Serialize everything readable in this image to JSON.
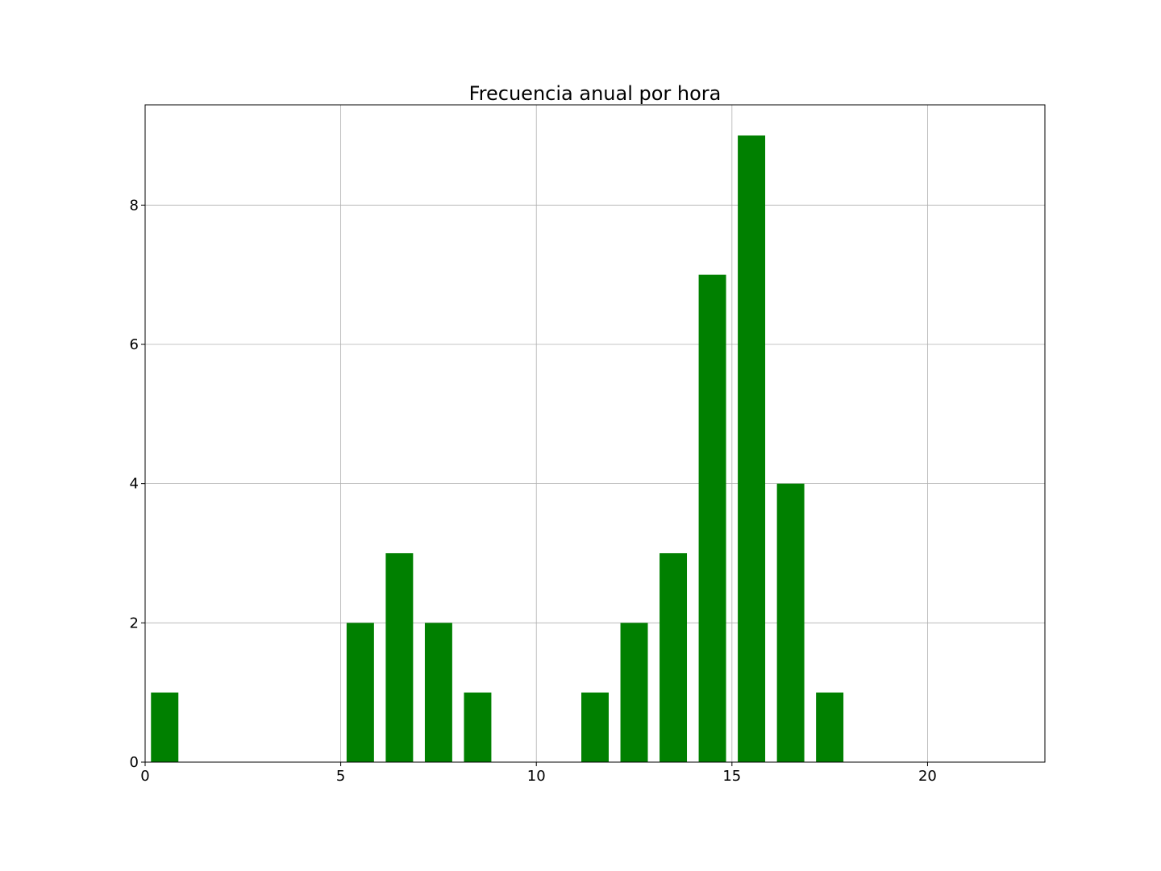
{
  "chart_data": {
    "type": "bar",
    "title": "Frecuencia anual por hora",
    "xlabel": "",
    "ylabel": "",
    "x": [
      0,
      5,
      6,
      7,
      8,
      11,
      12,
      13,
      14,
      15,
      16,
      17
    ],
    "values": [
      1,
      2,
      3,
      2,
      1,
      1,
      2,
      3,
      7,
      9,
      4,
      1
    ],
    "bar_width": 0.7,
    "xlim": [
      0,
      23
    ],
    "ylim": [
      0,
      9.44
    ],
    "xticks": [
      0,
      5,
      10,
      15,
      20
    ],
    "yticks": [
      0,
      2,
      4,
      6,
      8
    ],
    "grid": true,
    "bar_color": "#008000"
  }
}
